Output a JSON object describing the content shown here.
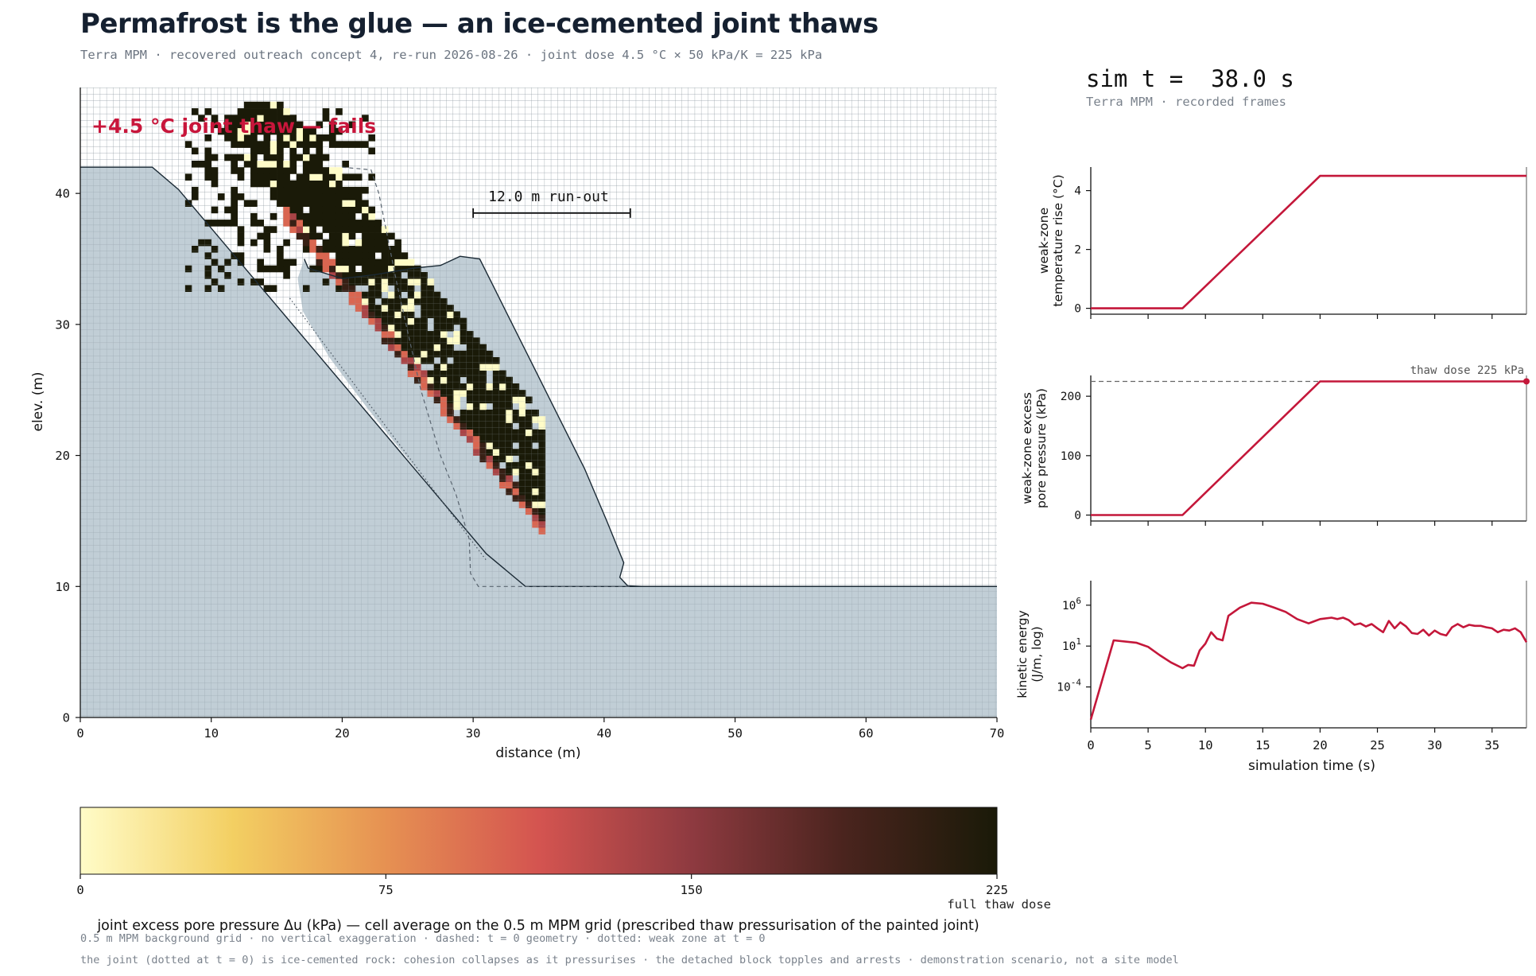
{
  "header": {
    "title": "Permafrost is the glue — an ice-cemented joint thaws",
    "subtitle": "Terra MPM · recovered outreach concept 4, re-run 2026-08-26 · joint dose 4.5 °C × 50 kPa/K = 225 kPa"
  },
  "sim": {
    "time_label": "sim t =  38.0 s",
    "source": "Terra MPM · recorded frames"
  },
  "chart_data": [
    {
      "id": "section",
      "type": "scatter",
      "annotation": "+4.5 °C joint thaw — fails",
      "runout_label": "12.0 m run-out",
      "runout_m": 12.0,
      "runout_x": [
        30,
        42
      ],
      "runout_y": 38.5,
      "xlabel": "distance (m)",
      "ylabel": "elev. (m)",
      "xlim": [
        0,
        70
      ],
      "ylim": [
        0,
        48
      ],
      "xticks": [
        0,
        10,
        20,
        30,
        40,
        50,
        60,
        70
      ],
      "yticks": [
        0,
        10,
        20,
        30,
        40
      ],
      "grid_spacing_m": 0.5,
      "initial_slope": [
        [
          0,
          42
        ],
        [
          5.5,
          42
        ],
        [
          7.5,
          40.3
        ],
        [
          31,
          12.5
        ],
        [
          34,
          10
        ],
        [
          70,
          10
        ]
      ],
      "initial_geometry_dashed": [
        [
          20,
          42
        ],
        [
          22.2,
          41.8
        ],
        [
          22.8,
          40
        ],
        [
          24.2,
          33
        ],
        [
          26,
          25
        ],
        [
          27.5,
          20
        ],
        [
          28.7,
          17
        ],
        [
          29.7,
          13.6
        ],
        [
          29.8,
          11
        ],
        [
          30.4,
          10
        ],
        [
          42,
          10
        ]
      ],
      "weak_zone_dotted": [
        [
          16,
          32
        ],
        [
          31,
          12
        ]
      ],
      "deposit_outline": [
        [
          17.1,
          35
        ],
        [
          17.4,
          34.3
        ],
        [
          20,
          33.5
        ],
        [
          22.5,
          33.8
        ],
        [
          25.5,
          34.3
        ],
        [
          27.5,
          34.5
        ],
        [
          29,
          35.2
        ],
        [
          30.5,
          35
        ],
        [
          31.5,
          33
        ],
        [
          32.5,
          31
        ],
        [
          34.5,
          27
        ],
        [
          36.5,
          23
        ],
        [
          38.5,
          19
        ],
        [
          40.2,
          15
        ],
        [
          41.5,
          11.8
        ],
        [
          41.2,
          10.7
        ],
        [
          41.8,
          10.05
        ],
        [
          43,
          10
        ],
        [
          70,
          10
        ]
      ],
      "colorbar": {
        "label": "joint excess pore pressure Δu (kPa) — cell average on the 0.5 m MPM grid (prescribed thaw pressurisation of the painted joint)",
        "min": 0,
        "max": 225,
        "ticks": [
          0,
          75,
          150,
          225
        ],
        "max_note": "full thaw dose",
        "colors": [
          "#fffcc8",
          "#f3cf62",
          "#e69152",
          "#d45450",
          "#8e3a40",
          "#4a241e",
          "#1a1a08"
        ]
      }
    },
    {
      "id": "temperature",
      "type": "line",
      "ylabel": "weak-zone temperature rise (°C)",
      "xlim": [
        0,
        38
      ],
      "ylim": [
        -0.2,
        4.8
      ],
      "yticks": [
        0,
        2,
        4
      ],
      "x": [
        0,
        8,
        20,
        38
      ],
      "y": [
        0,
        0,
        4.5,
        4.5
      ],
      "color": "#c4173a"
    },
    {
      "id": "pore_pressure",
      "type": "line",
      "ylabel": "weak-zone excess pore pressure (kPa)",
      "xlim": [
        0,
        38
      ],
      "ylim": [
        -10,
        235
      ],
      "yticks": [
        0,
        100,
        200
      ],
      "x": [
        0,
        8,
        20,
        38
      ],
      "y": [
        0,
        0,
        225,
        225
      ],
      "reference": {
        "label": "thaw dose 225 kPa",
        "value": 225
      },
      "color": "#c4173a"
    },
    {
      "id": "kinetic_energy",
      "type": "line",
      "ylabel": "kinetic energy (J/m, log)",
      "xlabel": "simulation time (s)",
      "scale": "log",
      "xlim": [
        0,
        38
      ],
      "ylim": [
        1e-09,
        1000000000.0
      ],
      "yticks": [
        0.0001,
        10,
        1000000
      ],
      "ytick_labels": [
        {
          "base": "10",
          "exp": "-4"
        },
        {
          "base": "10",
          "exp": "1"
        },
        {
          "base": "10",
          "exp": "6"
        }
      ],
      "xticks": [
        0,
        5,
        10,
        15,
        20,
        25,
        30,
        35
      ],
      "x": [
        0,
        2,
        4,
        5,
        6,
        7,
        8,
        8.5,
        9,
        9.5,
        10,
        10.5,
        11,
        11.5,
        12,
        13,
        14,
        15,
        16,
        17,
        18,
        19,
        20,
        21,
        21.5,
        22,
        22.5,
        23,
        23.5,
        24,
        24.5,
        25,
        25.5,
        26,
        26.5,
        27,
        27.5,
        28,
        28.5,
        29,
        29.5,
        30,
        30.5,
        31,
        31.5,
        32,
        32.5,
        33,
        33.5,
        34,
        34.5,
        35,
        35.5,
        36,
        36.5,
        37,
        37.5,
        38
      ],
      "y": [
        1e-08,
        50,
        25,
        8,
        0.8,
        0.1,
        0.02,
        0.05,
        0.04,
        3,
        20,
        500,
        80,
        50,
        50000.0,
        500000.0,
        2000000.0,
        1500000.0,
        500000.0,
        150000.0,
        20000.0,
        6000.0,
        20000.0,
        30000.0,
        20000.0,
        30000.0,
        15000.0,
        4000.0,
        6000.0,
        2500.0,
        5000.0,
        1500.0,
        500.0,
        12000.0,
        1500.0,
        8000.0,
        2500.0,
        400.0,
        300.0,
        1000.0,
        200.0,
        800.0,
        300.0,
        200.0,
        2000.0,
        5000.0,
        2000.0,
        4000.0,
        3000.0,
        3000.0,
        2000.0,
        1500.0,
        500.0,
        1000.0,
        800.0,
        1500.0,
        500.0,
        30.0
      ],
      "color": "#c4173a"
    }
  ],
  "footer": {
    "line1": "0.5 m MPM background grid · no vertical exaggeration · dashed: t = 0 geometry · dotted: weak zone at t = 0",
    "line2": "the joint (dotted at t = 0) is ice-cemented rock: cohesion collapses as it pressurises · the detached block topples and arrests · demonstration scenario, not a site model"
  }
}
